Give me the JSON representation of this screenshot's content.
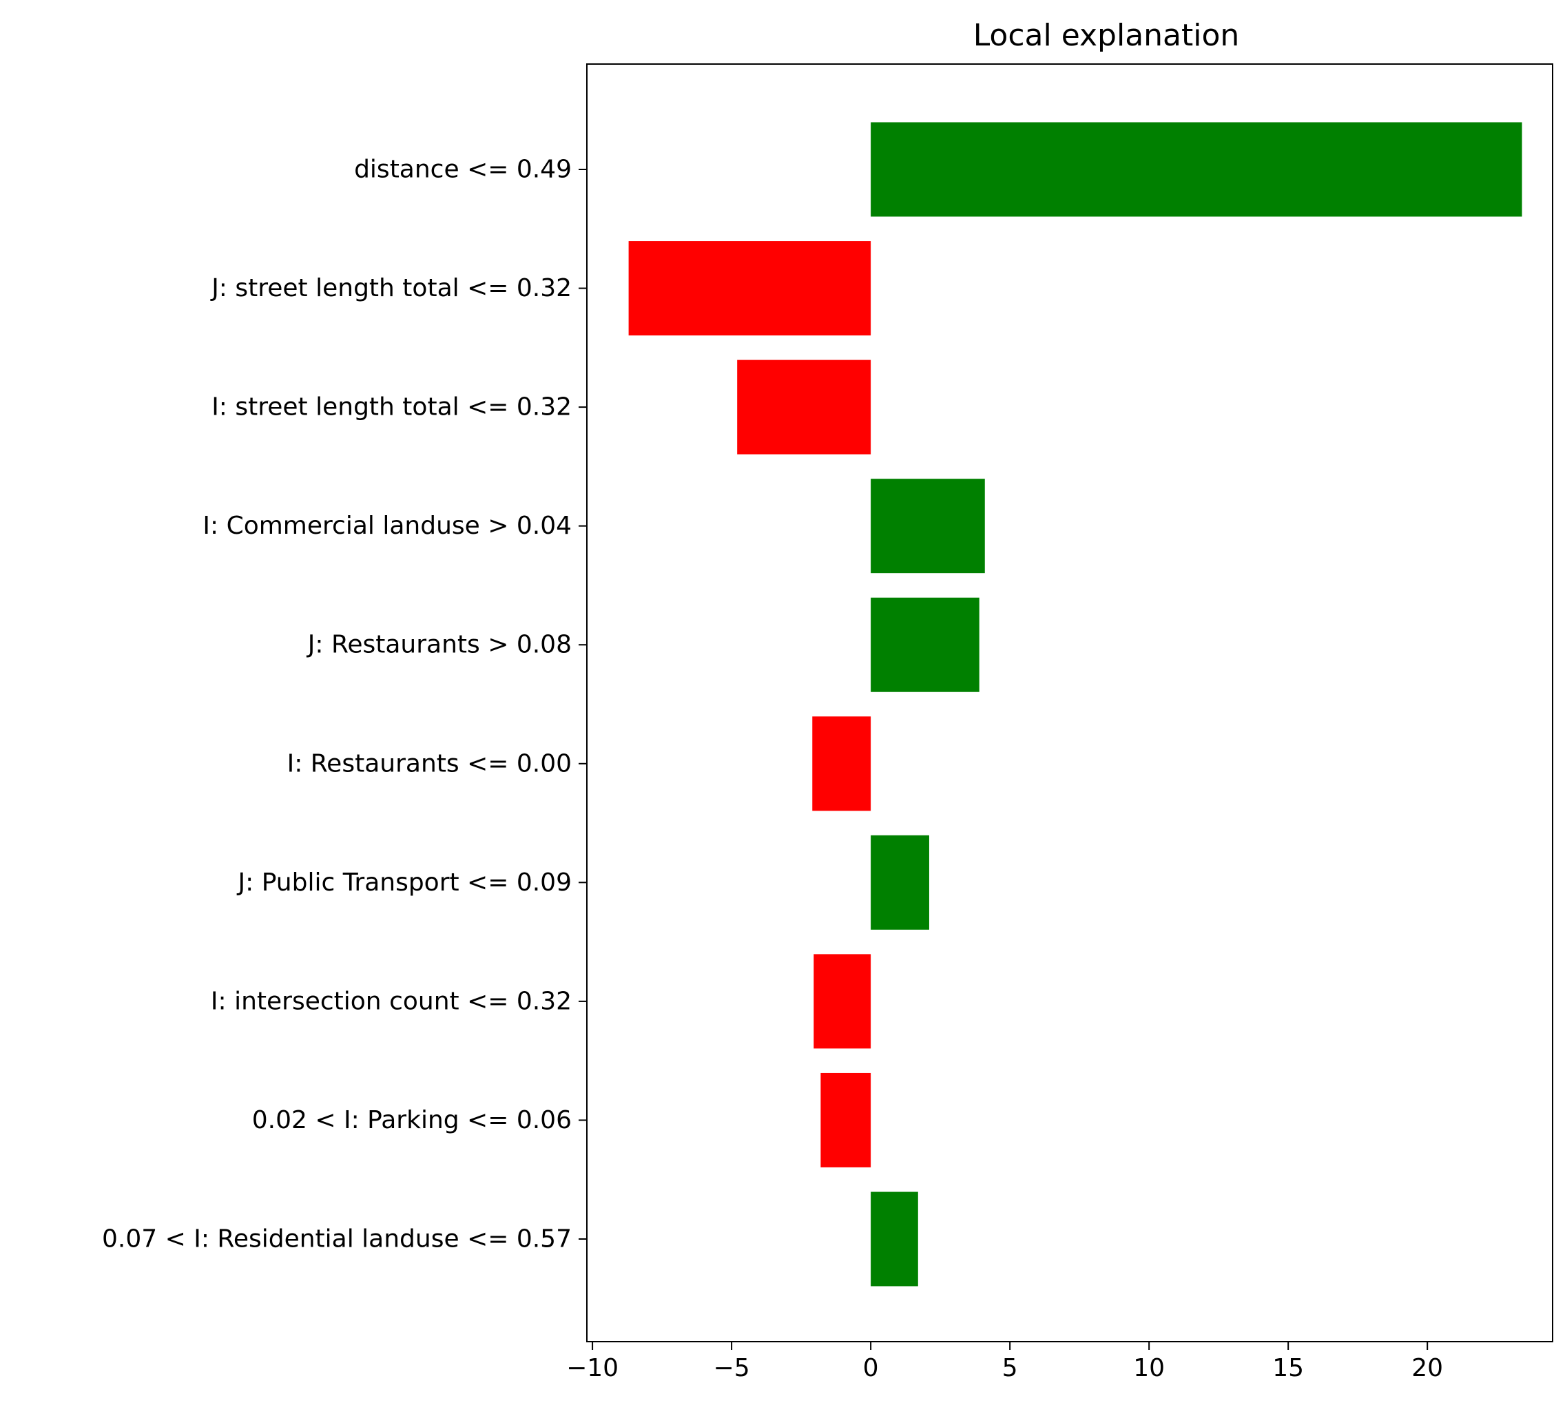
{
  "chart_data": {
    "type": "bar",
    "orientation": "horizontal",
    "title": "Local explanation",
    "xlabel": "",
    "ylabel": "",
    "xlim": [
      -10.2,
      24.5
    ],
    "xticks": [
      -10,
      -5,
      0,
      5,
      10,
      15,
      20
    ],
    "xtick_labels": [
      "−10",
      "−5",
      "0",
      "5",
      "10",
      "15",
      "20"
    ],
    "grid": false,
    "legend": "none",
    "positive_color": "#008000",
    "negative_color": "#ff0000",
    "categories": [
      "distance <= 0.49",
      "J: street length total <= 0.32",
      "I: street length total <= 0.32",
      "I: Commercial landuse > 0.04",
      "J: Restaurants > 0.08",
      "I: Restaurants <= 0.00",
      "J: Public Transport <= 0.09",
      "I: intersection count <= 0.32",
      "0.02 < I: Parking <= 0.06",
      "0.07 < I: Residential landuse <= 0.57"
    ],
    "values": [
      23.4,
      -8.7,
      -4.8,
      4.1,
      3.9,
      -2.1,
      2.1,
      -2.05,
      -1.8,
      1.7
    ]
  }
}
